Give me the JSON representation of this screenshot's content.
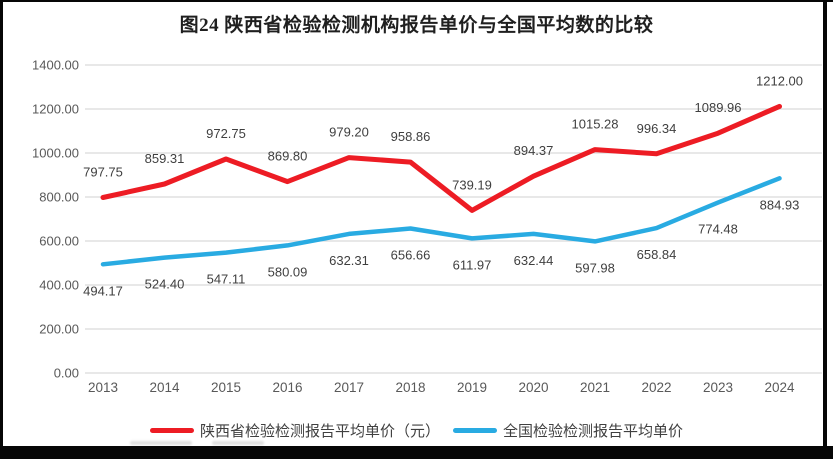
{
  "title": "图24 陕西省检验检测机构报告单价与全国平均数的比较",
  "chart_data": {
    "type": "line",
    "categories": [
      "2013",
      "2014",
      "2015",
      "2016",
      "2017",
      "2018",
      "2019",
      "2020",
      "2021",
      "2022",
      "2023",
      "2024"
    ],
    "series": [
      {
        "name": "陕西省检验检测报告平均单价（元）",
        "color": "#ed1c24",
        "label_position": "above",
        "values": [
          797.75,
          859.31,
          972.75,
          869.8,
          979.2,
          958.86,
          739.19,
          894.37,
          1015.28,
          996.34,
          1089.96,
          1212.0
        ]
      },
      {
        "name": "全国检验检测报告平均单价",
        "color": "#29abe2",
        "label_position": "below",
        "values": [
          494.17,
          524.4,
          547.11,
          580.09,
          632.31,
          656.66,
          611.97,
          632.44,
          597.98,
          658.84,
          774.48,
          884.93
        ]
      }
    ],
    "ylim": [
      0,
      1400
    ],
    "ytick_step": 200,
    "ytick_decimals": 2,
    "value_label_decimals": 2,
    "grid": true,
    "legend_position": "bottom"
  },
  "colors": {
    "gridline": "#d9d9d9",
    "axis_text": "#595959",
    "data_label_text": "#3f3f3f",
    "title_text": "#1f1f1f",
    "frame": "#060606"
  }
}
